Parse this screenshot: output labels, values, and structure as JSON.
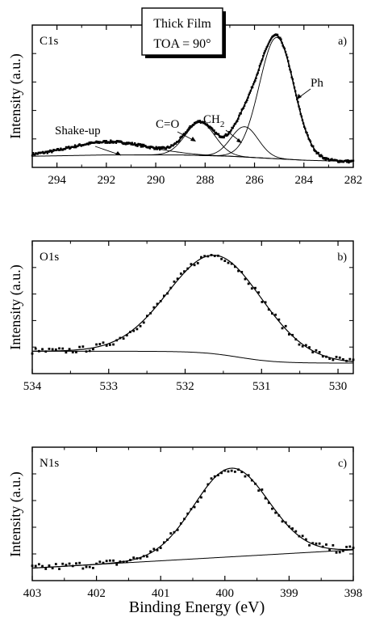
{
  "figure": {
    "legend_box": {
      "line1": "Thick Film",
      "line2": "TOA = 90°"
    },
    "x_axis_label": "Binding Energy (eV)"
  },
  "chart_data": [
    {
      "type": "line",
      "panel_label": "C1s",
      "panel_id": "a)",
      "ylabel": "Intensity (a.u.)",
      "xlabel": "",
      "xlim": [
        295,
        282
      ],
      "x_ticks": [
        294,
        292,
        290,
        288,
        286,
        284,
        282
      ],
      "ylim": [
        0,
        1
      ],
      "baseline": {
        "x": [
          295,
          292,
          289,
          288,
          287,
          286,
          285,
          284,
          282
        ],
        "y": [
          0.06,
          0.07,
          0.07,
          0.065,
          0.06,
          0.05,
          0.04,
          0.03,
          0.02
        ]
      },
      "components": [
        {
          "name": "Ph",
          "center": 285.1,
          "height": 0.92,
          "width": 0.7
        },
        {
          "name": "CH2",
          "center": 286.4,
          "height": 0.23,
          "width": 0.55
        },
        {
          "name": "C=O",
          "center": 288.2,
          "height": 0.25,
          "width": 0.6
        },
        {
          "name": "Shake-up",
          "center": 291.9,
          "height": 0.1,
          "width": 1.6
        }
      ],
      "annotations": [
        {
          "text": "Shake-up",
          "x": 291.5
        },
        {
          "text": "C=O",
          "x": 288.0
        },
        {
          "text": "CH",
          "sub": "2",
          "x": 286.8
        },
        {
          "text": "Ph",
          "x": 284.4
        }
      ]
    },
    {
      "type": "line",
      "panel_label": "O1s",
      "panel_id": "b)",
      "ylabel": "Intensity (a.u.)",
      "xlabel": "",
      "xlim": [
        534,
        529.8
      ],
      "x_ticks": [
        534,
        533,
        532,
        531,
        530
      ],
      "ylim": [
        0,
        1
      ],
      "baseline_step": {
        "low_side": 0.12,
        "high_side": 0.02,
        "center": 531.3,
        "width": 0.5
      },
      "peak": {
        "center": 531.6,
        "height": 0.83,
        "width": 0.62
      }
    },
    {
      "type": "line",
      "panel_label": "N1s",
      "panel_id": "c)",
      "ylabel": "Intensity (a.u.)",
      "xlabel": "Binding Energy (eV)",
      "xlim": [
        403,
        398
      ],
      "x_ticks": [
        403,
        402,
        401,
        400,
        399,
        398
      ],
      "ylim": [
        0,
        1
      ],
      "baseline_linear": {
        "x": [
          403,
          398
        ],
        "y": [
          0.05,
          0.2
        ]
      },
      "peak": {
        "center": 399.9,
        "height": 0.73,
        "width": 0.58
      }
    }
  ]
}
